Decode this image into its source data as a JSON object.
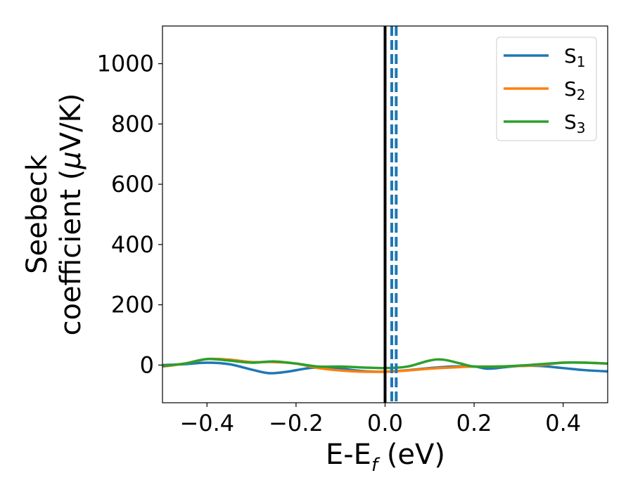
{
  "chart_data": {
    "type": "line",
    "xlabel": "E-E",
    "xlabel_sub": "f",
    "xlabel_unit": " (eV)",
    "ylabel_line1": "Seebeck",
    "ylabel_line2": "coefficient  (",
    "ylabel_mu": "μ",
    "ylabel_unit": "V/K)",
    "xlim": [
      -0.5,
      0.5
    ],
    "ylim": [
      -125,
      1125
    ],
    "xticks": [
      -0.4,
      -0.2,
      0.0,
      0.2,
      0.4
    ],
    "xtick_labels": [
      "−0.4",
      "−0.2",
      "0.0",
      "0.2",
      "0.4"
    ],
    "yticks": [
      0,
      200,
      400,
      600,
      800,
      1000
    ],
    "ytick_labels": [
      "0",
      "200",
      "400",
      "600",
      "800",
      "1000"
    ],
    "legend_position": "top-right",
    "vertical_lines": [
      {
        "x": 0.0,
        "style": "solid",
        "color": "#000000"
      },
      {
        "x": 0.015,
        "style": "dashed",
        "color": "#1f77b4"
      },
      {
        "x": 0.025,
        "style": "dashed",
        "color": "#1f77b4"
      }
    ],
    "series": [
      {
        "name": "S",
        "subscript": "1",
        "color": "#1f77b4",
        "x": [
          -0.5,
          -0.45,
          -0.4,
          -0.35,
          -0.3,
          -0.26,
          -0.22,
          -0.18,
          -0.15,
          -0.1,
          -0.05,
          0.0,
          0.05,
          0.1,
          0.15,
          0.2,
          0.23,
          0.27,
          0.3,
          0.35,
          0.4,
          0.45,
          0.5
        ],
        "values": [
          0,
          3,
          8,
          3,
          -15,
          -27,
          -22,
          -12,
          -8,
          -12,
          -20,
          -22,
          -17,
          -10,
          -5,
          -5,
          -12,
          -7,
          -3,
          -3,
          -10,
          -17,
          -21
        ]
      },
      {
        "name": "S",
        "subscript": "2",
        "color": "#ff7f0e",
        "x": [
          -0.5,
          -0.45,
          -0.4,
          -0.35,
          -0.3,
          -0.25,
          -0.2,
          -0.15,
          -0.1,
          -0.05,
          0.0,
          0.05,
          0.1,
          0.15,
          0.2,
          0.25,
          0.3,
          0.35,
          0.4,
          0.45,
          0.5
        ],
        "values": [
          -5,
          5,
          20,
          18,
          10,
          10,
          5,
          -10,
          -18,
          -22,
          -22,
          -18,
          -12,
          -8,
          -5,
          -5,
          -3,
          0,
          8,
          8,
          5
        ]
      },
      {
        "name": "S",
        "subscript": "3",
        "color": "#2ca02c",
        "x": [
          -0.5,
          -0.45,
          -0.4,
          -0.35,
          -0.3,
          -0.25,
          -0.2,
          -0.15,
          -0.1,
          -0.05,
          0.0,
          0.05,
          0.1,
          0.13,
          0.17,
          0.2,
          0.25,
          0.3,
          0.35,
          0.4,
          0.45,
          0.5
        ],
        "values": [
          -3,
          5,
          20,
          15,
          8,
          12,
          5,
          -5,
          -5,
          -8,
          -10,
          -5,
          15,
          18,
          5,
          -5,
          -5,
          -2,
          3,
          8,
          8,
          5
        ]
      }
    ]
  }
}
